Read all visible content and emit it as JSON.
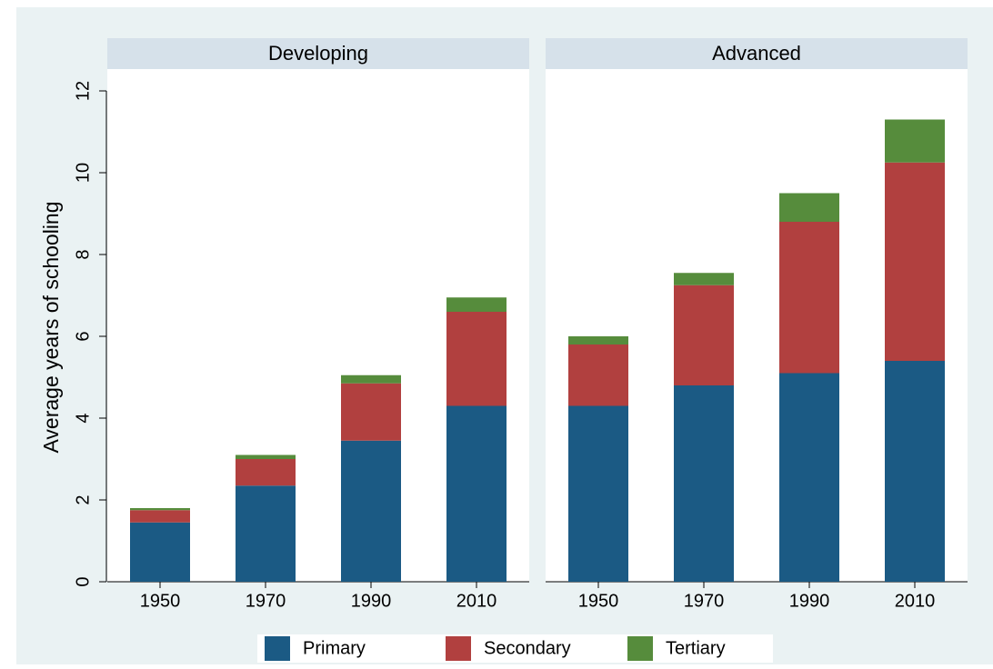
{
  "chart_data": {
    "type": "bar",
    "stacked": true,
    "ylabel": "Average years of schooling",
    "ylim": [
      0,
      12
    ],
    "yticks": [
      0,
      2,
      4,
      6,
      8,
      10,
      12
    ],
    "grid": false,
    "legend": "bottom",
    "series": [
      {
        "name": "Primary",
        "color": "#1b5a84"
      },
      {
        "name": "Secondary",
        "color": "#b1403f"
      },
      {
        "name": "Tertiary",
        "color": "#568c3c"
      }
    ],
    "panels": [
      {
        "title": "Developing",
        "categories": [
          "1950",
          "1970",
          "1990",
          "2010"
        ],
        "values": [
          [
            1.45,
            2.35,
            3.45,
            4.3
          ],
          [
            0.3,
            0.65,
            1.4,
            2.3
          ],
          [
            0.05,
            0.1,
            0.2,
            0.35
          ]
        ]
      },
      {
        "title": "Advanced",
        "categories": [
          "1950",
          "1970",
          "1990",
          "2010"
        ],
        "values": [
          [
            4.3,
            4.8,
            5.1,
            5.4
          ],
          [
            1.5,
            2.45,
            3.7,
            4.85
          ],
          [
            0.2,
            0.3,
            0.7,
            1.05
          ]
        ]
      }
    ]
  }
}
